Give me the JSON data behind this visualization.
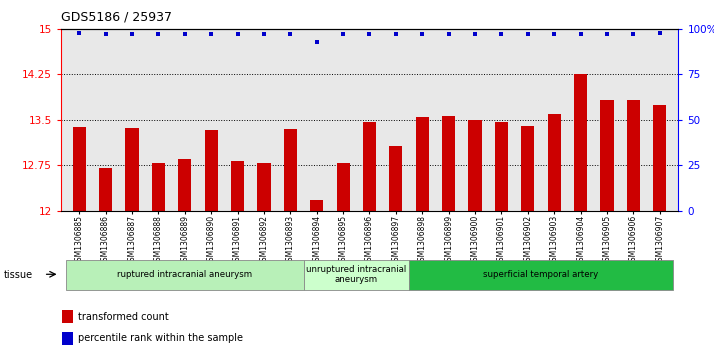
{
  "title": "GDS5186 / 25937",
  "samples": [
    "GSM1306885",
    "GSM1306886",
    "GSM1306887",
    "GSM1306888",
    "GSM1306889",
    "GSM1306890",
    "GSM1306891",
    "GSM1306892",
    "GSM1306893",
    "GSM1306894",
    "GSM1306895",
    "GSM1306896",
    "GSM1306897",
    "GSM1306898",
    "GSM1306899",
    "GSM1306900",
    "GSM1306901",
    "GSM1306902",
    "GSM1306903",
    "GSM1306904",
    "GSM1306905",
    "GSM1306906",
    "GSM1306907"
  ],
  "bar_values": [
    13.38,
    12.7,
    13.36,
    12.78,
    12.85,
    13.33,
    12.82,
    12.78,
    13.35,
    12.18,
    12.79,
    13.47,
    13.07,
    13.55,
    13.57,
    13.5,
    13.47,
    13.4,
    13.6,
    14.25,
    13.82,
    13.83,
    13.75
  ],
  "percentile_values": [
    98,
    97,
    97,
    97,
    97,
    97,
    97,
    97,
    97,
    93,
    97,
    97,
    97,
    97,
    97,
    97,
    97,
    97,
    97,
    97,
    97,
    97,
    98
  ],
  "bar_color": "#cc0000",
  "dot_color": "#0000cc",
  "ylim_left": [
    12,
    15
  ],
  "ylim_right": [
    0,
    100
  ],
  "yticks_left": [
    12,
    12.75,
    13.5,
    14.25,
    15
  ],
  "ytick_labels_left": [
    "12",
    "12.75",
    "13.5",
    "14.25",
    "15"
  ],
  "yticks_right": [
    0,
    25,
    50,
    75,
    100
  ],
  "ytick_labels_right": [
    "0",
    "25",
    "50",
    "75",
    "100%"
  ],
  "hlines": [
    12.75,
    13.5,
    14.25
  ],
  "groups": [
    {
      "label": "ruptured intracranial aneurysm",
      "start": 0,
      "end": 8,
      "color": "#b8f0b8"
    },
    {
      "label": "unruptured intracranial\naneurysm",
      "start": 9,
      "end": 12,
      "color": "#ccffcc"
    },
    {
      "label": "superficial temporal artery",
      "start": 13,
      "end": 22,
      "color": "#22bb44"
    }
  ],
  "tissue_label": "tissue",
  "legend_bar_label": "transformed count",
  "legend_dot_label": "percentile rank within the sample",
  "plot_bg": "#e8e8e8",
  "fig_bg": "#ffffff"
}
